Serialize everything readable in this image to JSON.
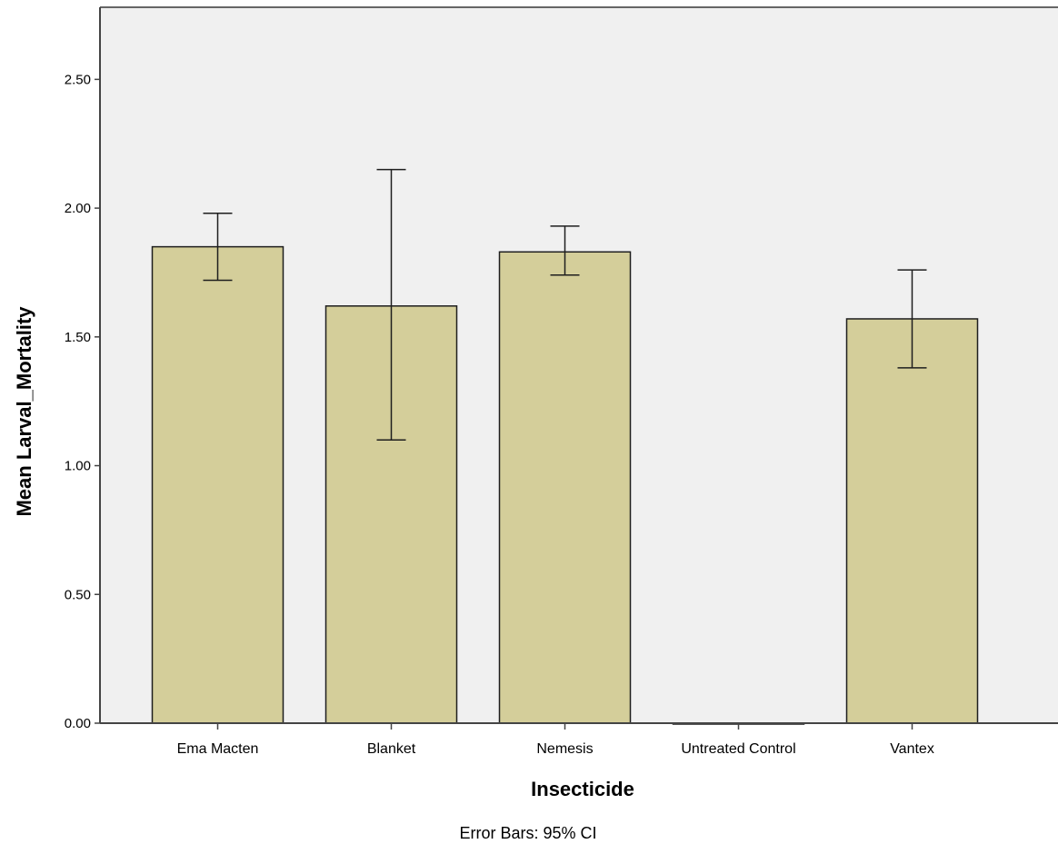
{
  "chart_data": {
    "type": "bar",
    "categories": [
      "Ema Macten",
      "Blanket",
      "Nemesis",
      "Untreated Control",
      "Vantex"
    ],
    "values": [
      1.85,
      1.62,
      1.83,
      0.0,
      1.57
    ],
    "error_bars": {
      "lower": [
        1.72,
        1.1,
        1.74,
        0.0,
        1.38
      ],
      "upper": [
        1.98,
        2.15,
        1.93,
        0.0,
        1.76
      ]
    },
    "xlabel": "Insecticide",
    "ylabel": "Mean Larval_Mortality",
    "ylim": [
      0,
      2.78
    ],
    "yticks": [
      0,
      0.5,
      1.0,
      1.5,
      2.0,
      2.5
    ],
    "ytick_labels": [
      "0.00",
      "0.50",
      "1.00",
      "1.50",
      "2.00",
      "2.50"
    ],
    "footnote": "Error Bars: 95% CI",
    "grid": false,
    "legend": "none",
    "colors": {
      "bar_fill": "#d4ce9a",
      "bar_stroke": "#1e1e1e",
      "plot_background": "#f0f0f0",
      "axis": "#444444",
      "error_bar": "#1e1e1e"
    }
  }
}
